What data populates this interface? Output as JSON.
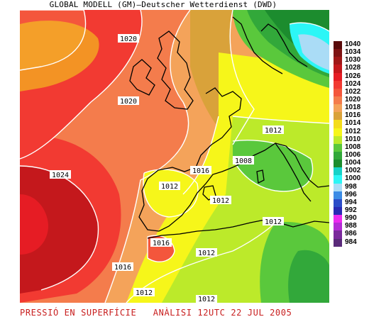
{
  "header": {
    "title": "GLOBAL MODELL (GM)—Deutscher Wetterdienst (DWD)"
  },
  "footer": {
    "text": "PRESSIÓ EN SUPERFÍCIE   ANÀLISI 12UTC 22 JUL 2005"
  },
  "legend": {
    "items": [
      {
        "label": "1040",
        "color": "#5a0b0b"
      },
      {
        "label": "1034",
        "color": "#7e1414"
      },
      {
        "label": "1030",
        "color": "#a01818"
      },
      {
        "label": "1028",
        "color": "#c4181c"
      },
      {
        "label": "1026",
        "color": "#e61c24"
      },
      {
        "label": "1024",
        "color": "#f23a32"
      },
      {
        "label": "1022",
        "color": "#f4563c"
      },
      {
        "label": "1020",
        "color": "#f47c4c"
      },
      {
        "label": "1018",
        "color": "#f4a35a"
      },
      {
        "label": "1016",
        "color": "#d9a23a"
      },
      {
        "label": "1014",
        "color": "#f4dc1a"
      },
      {
        "label": "1012",
        "color": "#f6f61a"
      },
      {
        "label": "1010",
        "color": "#bcea2a"
      },
      {
        "label": "1008",
        "color": "#5ac83c"
      },
      {
        "label": "1006",
        "color": "#32a83a"
      },
      {
        "label": "1004",
        "color": "#1c8c2e"
      },
      {
        "label": "1002",
        "color": "#16d2c8"
      },
      {
        "label": "1000",
        "color": "#2cf6f6"
      },
      {
        "label": "998",
        "color": "#aadcf6"
      },
      {
        "label": "996",
        "color": "#3c8ce6"
      },
      {
        "label": "994",
        "color": "#2c4cc8"
      },
      {
        "label": "992",
        "color": "#2a2ab4"
      },
      {
        "label": "990",
        "color": "#ee2af0"
      },
      {
        "label": "988",
        "color": "#b42cd6"
      },
      {
        "label": "986",
        "color": "#7a2a9c"
      },
      {
        "label": "984",
        "color": "#5a2a7a"
      }
    ]
  },
  "isobar_labels": [
    {
      "text": "1020"
    },
    {
      "text": "1020"
    },
    {
      "text": "1024"
    },
    {
      "text": "1016"
    },
    {
      "text": "1012"
    },
    {
      "text": "1008"
    },
    {
      "text": "1012"
    },
    {
      "text": "1012"
    },
    {
      "text": "1016"
    },
    {
      "text": "1012"
    },
    {
      "text": "1016"
    },
    {
      "text": "1012"
    },
    {
      "text": "1012"
    },
    {
      "text": "1012"
    }
  ]
}
